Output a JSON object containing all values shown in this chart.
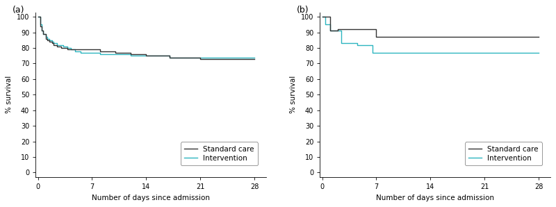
{
  "panel_a": {
    "label": "(a)",
    "standard_care_x": [
      0,
      0.3,
      0.5,
      0.7,
      1.0,
      1.2,
      1.5,
      1.8,
      2.0,
      2.3,
      2.5,
      2.8,
      3.0,
      3.3,
      3.5,
      3.8,
      4.0,
      4.3,
      4.5,
      4.8,
      5.0,
      5.3,
      5.5,
      5.8,
      6.0,
      6.3,
      6.5,
      6.8,
      7.0,
      8.0,
      9.0,
      10.0,
      11.0,
      12.0,
      13.0,
      14.0,
      15.0,
      16.0,
      17.0,
      18.0,
      19.0,
      20.0,
      21.0,
      22.0,
      23.0,
      24.0,
      25.0,
      26.0,
      27.0,
      28.0
    ],
    "standard_care_y": [
      100,
      94,
      91,
      89,
      86,
      85,
      84,
      83,
      82,
      82,
      81,
      81,
      80,
      80,
      80,
      79,
      79,
      79,
      79,
      79,
      79,
      79,
      79,
      79,
      79,
      79,
      79,
      79,
      79,
      78,
      78,
      77,
      77,
      76,
      76,
      75,
      75,
      75,
      74,
      74,
      74,
      74,
      73,
      73,
      73,
      73,
      73,
      73,
      73,
      73
    ],
    "intervention_x": [
      0,
      0.3,
      0.5,
      0.7,
      1.0,
      1.2,
      1.5,
      1.8,
      2.0,
      2.3,
      2.5,
      2.8,
      3.0,
      3.3,
      3.5,
      3.8,
      4.0,
      4.3,
      4.5,
      4.8,
      5.0,
      5.3,
      5.5,
      5.8,
      6.0,
      6.3,
      6.5,
      6.8,
      7.0,
      8.0,
      9.0,
      10.0,
      11.0,
      12.0,
      13.0,
      14.0,
      15.0,
      16.0,
      17.0,
      18.0,
      19.0,
      20.0,
      21.0,
      22.0,
      23.0,
      24.0,
      25.0,
      26.0,
      27.0,
      28.0
    ],
    "intervention_y": [
      100,
      95,
      91,
      89,
      87,
      86,
      85,
      84,
      83,
      83,
      82,
      82,
      82,
      81,
      81,
      80,
      80,
      79,
      79,
      78,
      78,
      78,
      77,
      77,
      77,
      77,
      77,
      77,
      77,
      76,
      76,
      76,
      76,
      75,
      75,
      75,
      75,
      75,
      74,
      74,
      74,
      74,
      74,
      74,
      74,
      74,
      74,
      74,
      74,
      74
    ]
  },
  "panel_b": {
    "label": "(b)",
    "standard_care_x": [
      0,
      1.0,
      1.0,
      2.0,
      2.0,
      7.0,
      7.0,
      28.0
    ],
    "standard_care_y": [
      100,
      100,
      91,
      91,
      92,
      92,
      87,
      87
    ],
    "intervention_x": [
      0,
      0.4,
      0.4,
      1.0,
      1.0,
      2.5,
      2.5,
      4.5,
      4.5,
      6.5,
      6.5,
      28.0
    ],
    "intervention_y": [
      100,
      100,
      95,
      95,
      91,
      91,
      83,
      83,
      82,
      82,
      77,
      77
    ]
  },
  "standard_care_color": "#333333",
  "intervention_color": "#2db5c0",
  "ylabel": "% survival",
  "xlabel": "Number of days since admission",
  "yticks": [
    0,
    10,
    20,
    30,
    40,
    50,
    60,
    70,
    80,
    90,
    100
  ],
  "xticks": [
    0,
    7,
    14,
    21,
    28
  ],
  "ylim": [
    -3,
    103
  ],
  "xlim": [
    -0.3,
    29.5
  ],
  "legend_labels": [
    "Standard care",
    "Intervention"
  ],
  "axis_label_fontsize": 7.5,
  "tick_fontsize": 7,
  "legend_fontsize": 7.5,
  "panel_label_fontsize": 9
}
